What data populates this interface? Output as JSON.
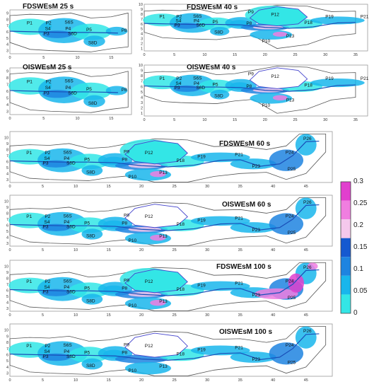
{
  "chart_data": {
    "type": "heatmap",
    "title": "",
    "colorbar": {
      "ticks": [
        "0",
        "0.05",
        "0.1",
        "0.15",
        "0.2",
        "0.25",
        "0.3"
      ],
      "colors": [
        "#33e6e6",
        "#19b6ec",
        "#1e84e0",
        "#1559d0",
        "#f5c8ec",
        "#f07ee0",
        "#e13fce"
      ]
    },
    "panels": [
      {
        "title": "FDSWEsM 25 s",
        "xticks": [
          "0",
          "5",
          "10",
          "15"
        ],
        "yticks": [
          "3",
          "4",
          "5",
          "6",
          "7",
          "8",
          "9"
        ],
        "xlim": [
          0,
          18
        ],
        "ylim": [
          2.5,
          9.5
        ],
        "labels": [
          "P1",
          "P2",
          "S6S",
          "S4",
          "P4",
          "P5",
          "P3",
          "S6D",
          "S8D",
          "P8"
        ]
      },
      {
        "title": "FDSWEsM 40 s",
        "xticks": [
          "0",
          "5",
          "10",
          "15",
          "20",
          "25",
          "30",
          "35"
        ],
        "yticks": [
          "1",
          "2",
          "3",
          "4",
          "5",
          "6",
          "7",
          "8",
          "9",
          "10"
        ],
        "xlim": [
          0,
          37
        ],
        "ylim": [
          0.5,
          10
        ],
        "labels": [
          "P1",
          "P2",
          "S6S",
          "S4",
          "P4",
          "P5",
          "P3",
          "S6D",
          "S8D",
          "P9",
          "P12",
          "P8",
          "P18",
          "P19",
          "P21",
          "P10",
          "P13"
        ]
      },
      {
        "title": "OISWEsM 25 s",
        "xticks": [
          "0",
          "5",
          "10",
          "15"
        ],
        "yticks": [
          "3",
          "4",
          "5",
          "6",
          "7",
          "8",
          "9"
        ],
        "xlim": [
          0,
          18
        ],
        "ylim": [
          2.5,
          9.5
        ],
        "labels": [
          "P1",
          "P2",
          "S6S",
          "S4",
          "P4",
          "P5",
          "P3",
          "S6D",
          "S8D",
          "P8"
        ]
      },
      {
        "title": "OISWEsM 40 s",
        "xticks": [
          "0",
          "5",
          "10",
          "15",
          "20",
          "25",
          "30",
          "35"
        ],
        "yticks": [
          "1",
          "2",
          "3",
          "4",
          "5",
          "6",
          "7",
          "8",
          "9",
          "10"
        ],
        "xlim": [
          0,
          37
        ],
        "ylim": [
          0.5,
          10
        ],
        "labels": [
          "P1",
          "P2",
          "S6S",
          "S4",
          "P4",
          "P5",
          "P3",
          "S6D",
          "S8D",
          "P9",
          "P12",
          "P8",
          "P18",
          "P19",
          "P21",
          "P10",
          "P13"
        ]
      },
      {
        "title": "FDSWEsM 60 s",
        "xticks": [
          "0",
          "5",
          "10",
          "15",
          "20",
          "25",
          "30",
          "35",
          "40",
          "45"
        ],
        "yticks": [
          "3",
          "4",
          "5",
          "6",
          "7",
          "8",
          "9",
          "10"
        ],
        "xlim": [
          0,
          49
        ],
        "ylim": [
          2.5,
          11
        ],
        "labels": [
          "P1",
          "P2",
          "S6S",
          "S4",
          "P4",
          "P5",
          "P3",
          "S6D",
          "S8D",
          "P9",
          "P12",
          "P8",
          "P18",
          "P19",
          "P21",
          "P10",
          "P13",
          "P23",
          "P24",
          "P25",
          "P26"
        ]
      },
      {
        "title": "OISWEsM 60 s",
        "xticks": [
          "0",
          "5",
          "10",
          "15",
          "20",
          "25",
          "30",
          "35",
          "40",
          "45"
        ],
        "yticks": [
          "3",
          "4",
          "5",
          "6",
          "7",
          "8",
          "9",
          "10"
        ],
        "xlim": [
          0,
          49
        ],
        "ylim": [
          2.5,
          11
        ],
        "labels": [
          "P1",
          "P2",
          "S6S",
          "S4",
          "P4",
          "P5",
          "P3",
          "S6D",
          "S8D",
          "P9",
          "P12",
          "P8",
          "P18",
          "P19",
          "P21",
          "P10",
          "P13",
          "P23",
          "P24",
          "P25",
          "P26"
        ]
      },
      {
        "title": "FDSWEsM 100 s",
        "xticks": [
          "0",
          "5",
          "10",
          "15",
          "20",
          "25",
          "30",
          "35",
          "40",
          "45"
        ],
        "yticks": [
          "3",
          "4",
          "5",
          "6",
          "7",
          "8",
          "9",
          "10"
        ],
        "xlim": [
          0,
          49
        ],
        "ylim": [
          2.5,
          11
        ],
        "labels": [
          "P1",
          "P2",
          "S6S",
          "S4",
          "P4",
          "P5",
          "P3",
          "S6D",
          "S8D",
          "P9",
          "P12",
          "P8",
          "P18",
          "P19",
          "P21",
          "P10",
          "P13",
          "P23",
          "P24",
          "P25",
          "P26"
        ]
      },
      {
        "title": "OISWEsM 100 s",
        "xticks": [
          "0",
          "5",
          "10",
          "15",
          "20",
          "25",
          "30",
          "35",
          "40",
          "45"
        ],
        "yticks": [
          "3",
          "4",
          "5",
          "6",
          "7",
          "8",
          "9",
          "10"
        ],
        "xlim": [
          0,
          49
        ],
        "ylim": [
          2.5,
          11
        ],
        "labels": [
          "P1",
          "P2",
          "S6S",
          "S4",
          "P4",
          "P5",
          "P3",
          "S6D",
          "S8D",
          "P9",
          "P12",
          "P8",
          "P18",
          "P19",
          "P21",
          "P10",
          "P13",
          "P23",
          "P24",
          "P25",
          "P26"
        ]
      }
    ]
  }
}
